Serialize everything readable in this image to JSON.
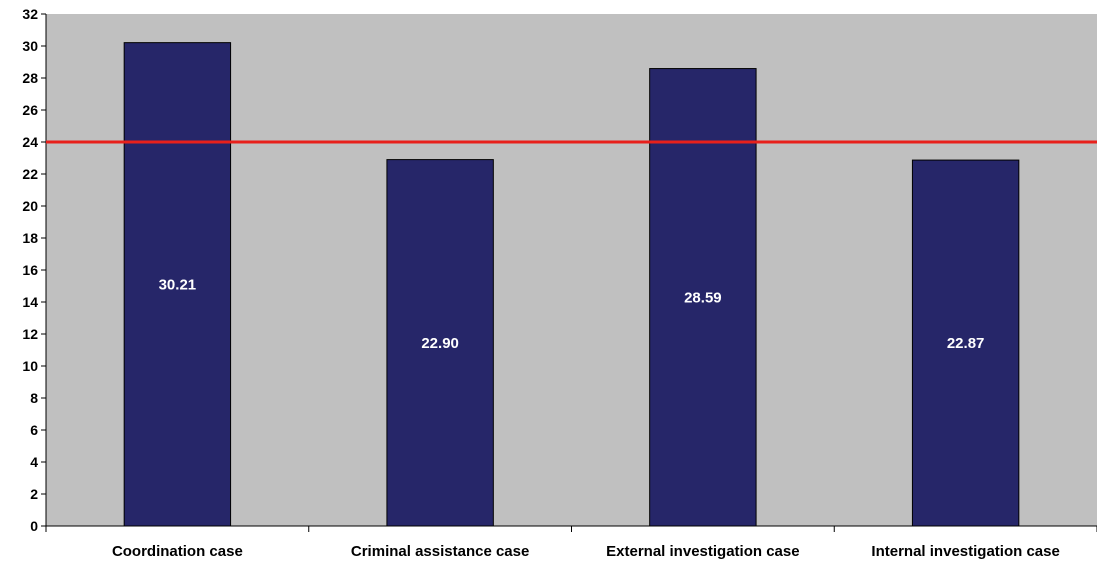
{
  "chart_data": {
    "type": "bar",
    "categories": [
      "Coordination case",
      "Criminal assistance case",
      "External investigation case",
      "Internal investigation case"
    ],
    "values": [
      30.21,
      22.9,
      28.59,
      22.87
    ],
    "data_labels": [
      "30.21",
      "22.90",
      "28.59",
      "22.87"
    ],
    "reference_line": {
      "value": 24,
      "color": "#e8201b"
    },
    "ylim": [
      0,
      32
    ],
    "yticks": [
      0,
      2,
      4,
      6,
      8,
      10,
      12,
      14,
      16,
      18,
      20,
      22,
      24,
      26,
      28,
      30,
      32
    ],
    "grid": false,
    "legend": "none",
    "title": "",
    "xlabel": "",
    "ylabel": "",
    "colors": {
      "bar": "#262669",
      "plot_background": "#c0c0c0",
      "reference_line": "#e8201b"
    }
  }
}
